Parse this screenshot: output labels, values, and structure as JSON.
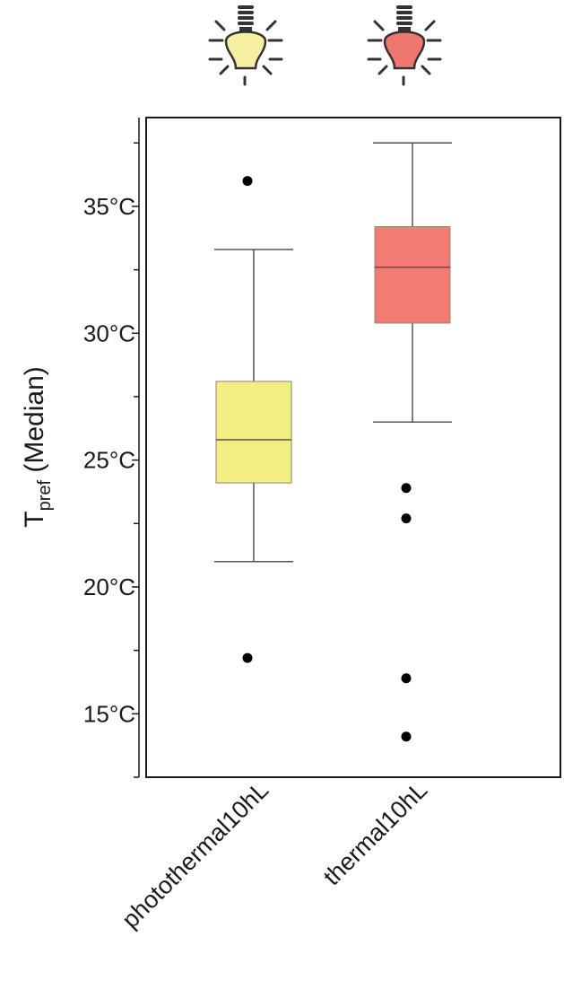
{
  "chart_data": {
    "type": "box",
    "ylabel": {
      "main": "T",
      "subscript": "pref",
      "suffix": " (Median)"
    },
    "ylim": [
      12.5,
      38.5
    ],
    "yticks": [
      {
        "value": 15,
        "label": "15°C"
      },
      {
        "value": 20,
        "label": "20°C"
      },
      {
        "value": 25,
        "label": "25°C"
      },
      {
        "value": 30,
        "label": "30°C"
      },
      {
        "value": 35,
        "label": "35°C"
      }
    ],
    "minor_ticks": [
      12.5,
      17.5,
      22.5,
      27.5,
      32.5,
      37.5
    ],
    "categories": [
      "photothermal10hL",
      "thermal10hL"
    ],
    "boxes": [
      {
        "name": "photothermal10hL",
        "color": "#f3ee84",
        "lightbulb_color": "#f7efa0",
        "whisker_low": 21.0,
        "q1": 24.1,
        "median": 25.8,
        "q3": 28.1,
        "whisker_high": 33.3,
        "outliers": [
          36.0,
          17.2
        ]
      },
      {
        "name": "thermal10hL",
        "color": "#f37b73",
        "lightbulb_color": "#f0776f",
        "whisker_low": 26.5,
        "q1": 30.4,
        "median": 32.6,
        "q3": 34.2,
        "whisker_high": 37.5,
        "outliers": [
          23.9,
          22.7,
          16.4,
          14.1
        ]
      }
    ],
    "grid": false,
    "legend": "none",
    "icons": [
      "lightbulb-icon",
      "lightbulb-icon"
    ]
  }
}
